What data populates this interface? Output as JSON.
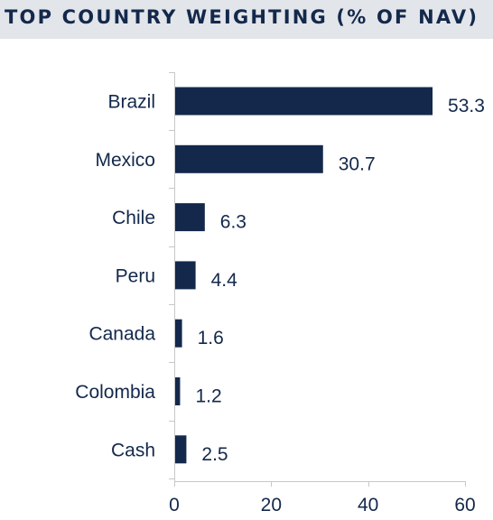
{
  "header": {
    "title": "TOP COUNTRY WEIGHTING (% OF NAV)"
  },
  "colors": {
    "bar": "#13284b",
    "text": "#13284b",
    "axis": "#c8c8c8",
    "title_band": "#e2e5ea"
  },
  "chart_data": {
    "type": "bar",
    "orientation": "horizontal",
    "title": "TOP COUNTRY WEIGHTING (% OF NAV)",
    "categories": [
      "Brazil",
      "Mexico",
      "Chile",
      "Peru",
      "Canada",
      "Colombia",
      "Cash"
    ],
    "values": [
      53.3,
      30.7,
      6.3,
      4.4,
      1.6,
      1.2,
      2.5
    ],
    "value_labels": [
      "53.3",
      "30.7",
      "6.3",
      "4.4",
      "1.6",
      "1.2",
      "2.5"
    ],
    "x_ticks": [
      0,
      20,
      40,
      60
    ],
    "xlim": [
      0,
      60
    ],
    "xlabel": "",
    "ylabel": "",
    "grid": false,
    "legend": "none"
  }
}
